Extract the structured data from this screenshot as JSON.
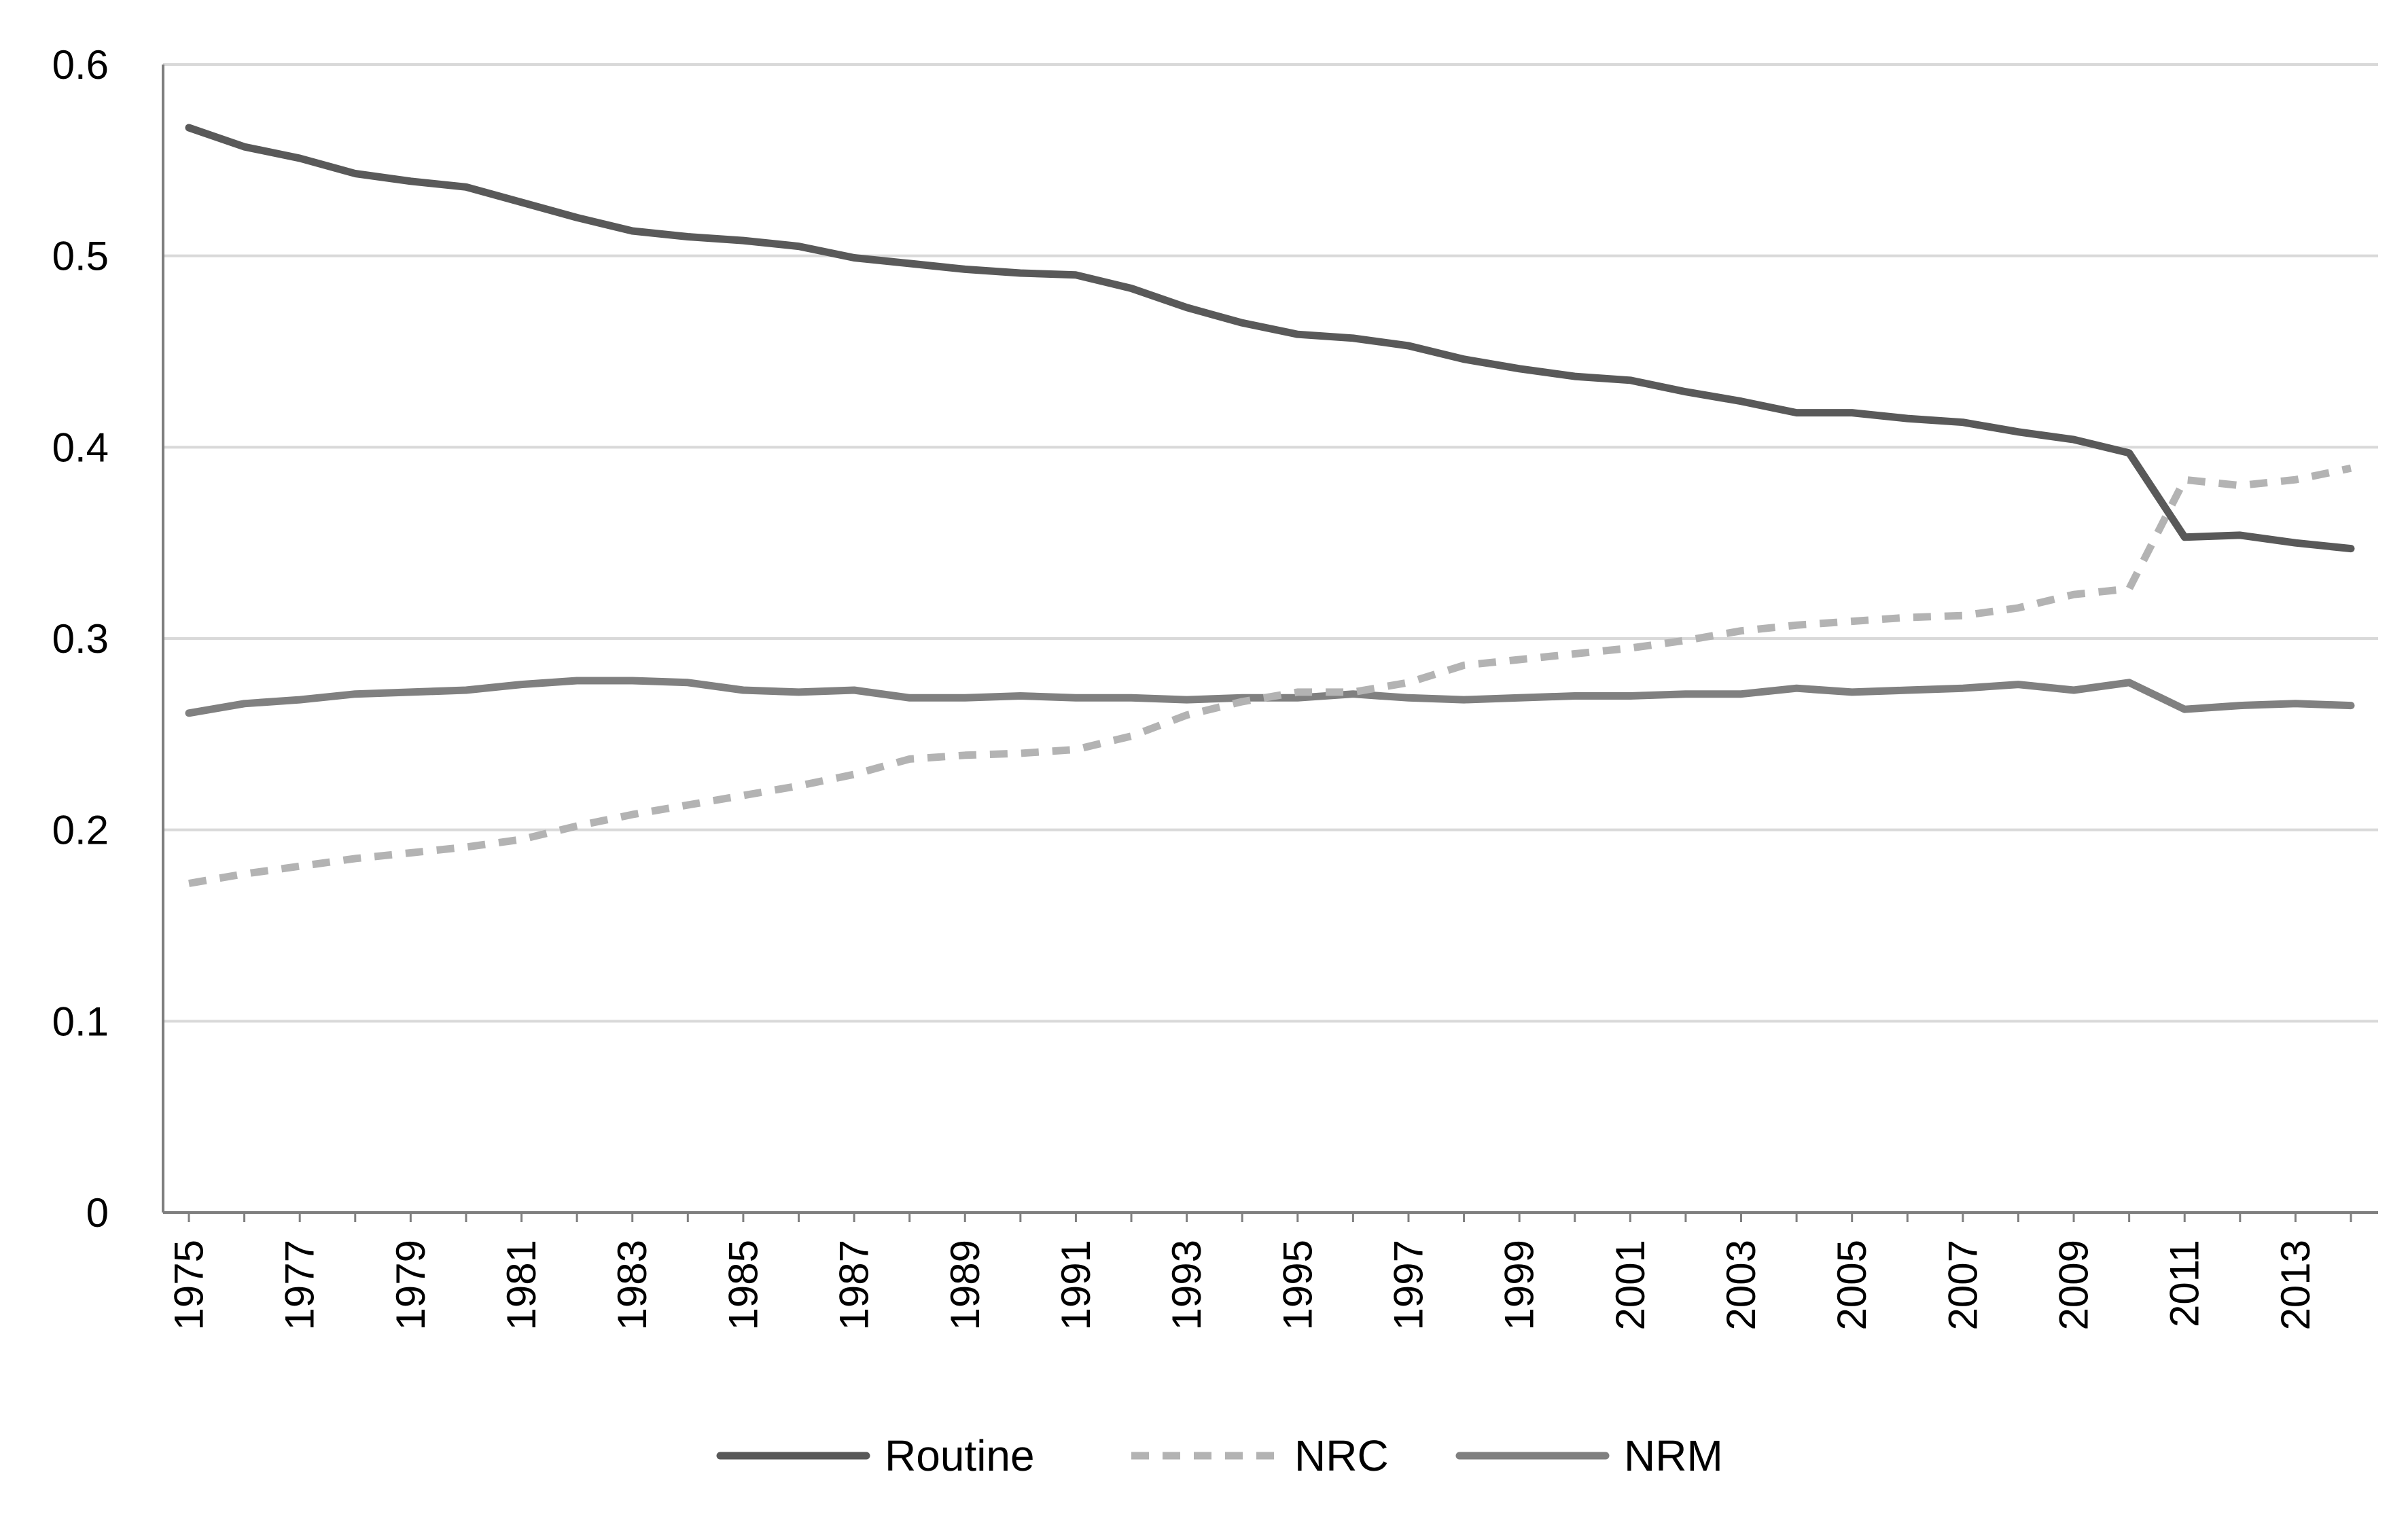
{
  "chart_data": {
    "type": "line",
    "title": "",
    "xlabel": "",
    "ylabel": "",
    "x": [
      1975,
      1976,
      1977,
      1978,
      1979,
      1980,
      1981,
      1982,
      1983,
      1984,
      1985,
      1986,
      1987,
      1988,
      1989,
      1990,
      1991,
      1992,
      1993,
      1994,
      1995,
      1996,
      1997,
      1998,
      1999,
      2000,
      2001,
      2002,
      2003,
      2004,
      2005,
      2006,
      2007,
      2008,
      2009,
      2010,
      2011,
      2012,
      2013,
      2014
    ],
    "x_tick_labels": [
      "1975",
      "1977",
      "1979",
      "1981",
      "1983",
      "1985",
      "1987",
      "1989",
      "1991",
      "1993",
      "1995",
      "1997",
      "1999",
      "2001",
      "2003",
      "2005",
      "2007",
      "2009",
      "2011",
      "2013"
    ],
    "ylim": [
      0,
      0.6
    ],
    "y_ticks": [
      0,
      0.1,
      0.2,
      0.3,
      0.4,
      0.5,
      0.6
    ],
    "y_tick_labels": [
      "0",
      "0.1",
      "0.2",
      "0.3",
      "0.4",
      "0.5",
      "0.6"
    ],
    "grid": "horizontal",
    "legend_position": "bottom",
    "series": [
      {
        "name": "Routine",
        "color": "#595959",
        "dash": "solid",
        "values": [
          0.567,
          0.557,
          0.551,
          0.543,
          0.539,
          0.536,
          0.528,
          0.52,
          0.513,
          0.51,
          0.508,
          0.505,
          0.499,
          0.496,
          0.493,
          0.491,
          0.49,
          0.483,
          0.473,
          0.465,
          0.459,
          0.457,
          0.453,
          0.446,
          0.441,
          0.437,
          0.435,
          0.429,
          0.424,
          0.418,
          0.418,
          0.415,
          0.413,
          0.408,
          0.404,
          0.397,
          0.353,
          0.354,
          0.35,
          0.347
        ]
      },
      {
        "name": "NRC",
        "color": "#b3b3b3",
        "dash": "dashed",
        "values": [
          0.172,
          0.177,
          0.181,
          0.185,
          0.188,
          0.191,
          0.195,
          0.202,
          0.208,
          0.213,
          0.218,
          0.223,
          0.229,
          0.237,
          0.239,
          0.24,
          0.242,
          0.249,
          0.26,
          0.267,
          0.272,
          0.272,
          0.277,
          0.286,
          0.289,
          0.292,
          0.295,
          0.299,
          0.304,
          0.307,
          0.309,
          0.311,
          0.312,
          0.316,
          0.323,
          0.326,
          0.383,
          0.38,
          0.383,
          0.389
        ]
      },
      {
        "name": "NRM",
        "color": "#808080",
        "dash": "solid",
        "values": [
          0.261,
          0.266,
          0.268,
          0.271,
          0.272,
          0.273,
          0.276,
          0.278,
          0.278,
          0.277,
          0.273,
          0.272,
          0.273,
          0.269,
          0.269,
          0.27,
          0.269,
          0.269,
          0.268,
          0.269,
          0.269,
          0.271,
          0.269,
          0.268,
          0.269,
          0.27,
          0.27,
          0.271,
          0.271,
          0.274,
          0.272,
          0.273,
          0.274,
          0.276,
          0.273,
          0.277,
          0.263,
          0.265,
          0.266,
          0.265
        ]
      }
    ]
  }
}
